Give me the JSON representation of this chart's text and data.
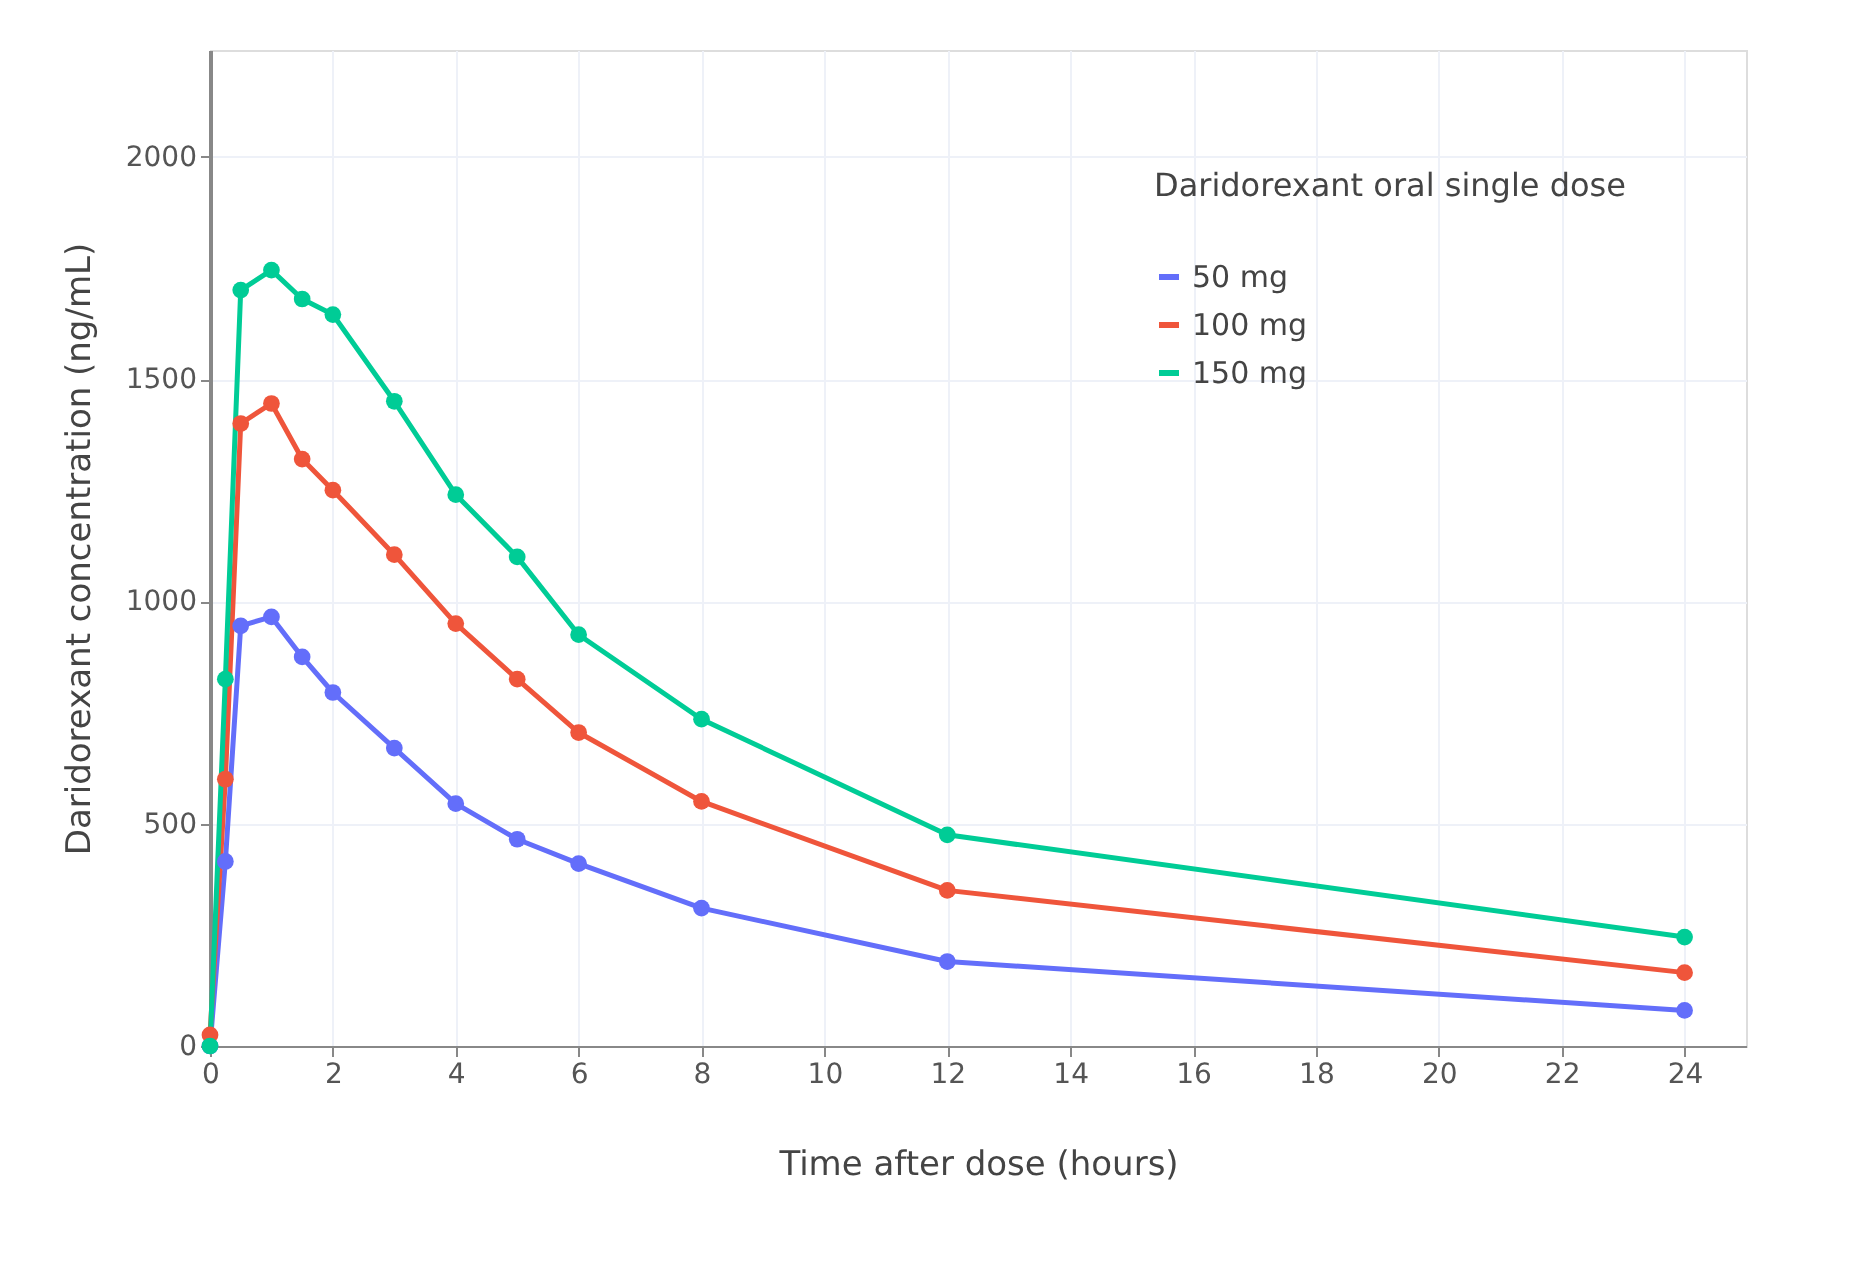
{
  "chart_data": {
    "type": "line",
    "xlabel": "Time after dose (hours)",
    "ylabel": "Daridorexant concentration (ng/mL)",
    "legend_title": "Daridorexant oral single dose",
    "x": [
      0,
      0.25,
      0.5,
      1,
      1.5,
      2,
      3,
      4,
      5,
      6,
      8,
      12,
      24
    ],
    "series": [
      {
        "name": "50 mg",
        "color": "#636efa",
        "values": [
          0,
          415,
          945,
          965,
          875,
          795,
          670,
          545,
          465,
          410,
          310,
          190,
          80
        ]
      },
      {
        "name": "100 mg",
        "color": "#ef553b",
        "values": [
          25,
          600,
          1400,
          1445,
          1320,
          1250,
          1105,
          950,
          825,
          705,
          550,
          350,
          165
        ]
      },
      {
        "name": "150 mg",
        "color": "#00cc96",
        "values": [
          0,
          825,
          1700,
          1745,
          1680,
          1645,
          1450,
          1240,
          1100,
          925,
          735,
          475,
          245
        ]
      }
    ],
    "xlim": [
      0,
      25
    ],
    "xticks": [
      0,
      2,
      4,
      6,
      8,
      10,
      12,
      14,
      16,
      18,
      20,
      22,
      24
    ],
    "ylim": [
      0,
      2240
    ],
    "yticks": [
      0,
      500,
      1000,
      1500,
      2000
    ],
    "grid": true,
    "legend": "top right",
    "marker": "circle",
    "line_style": "solid"
  }
}
